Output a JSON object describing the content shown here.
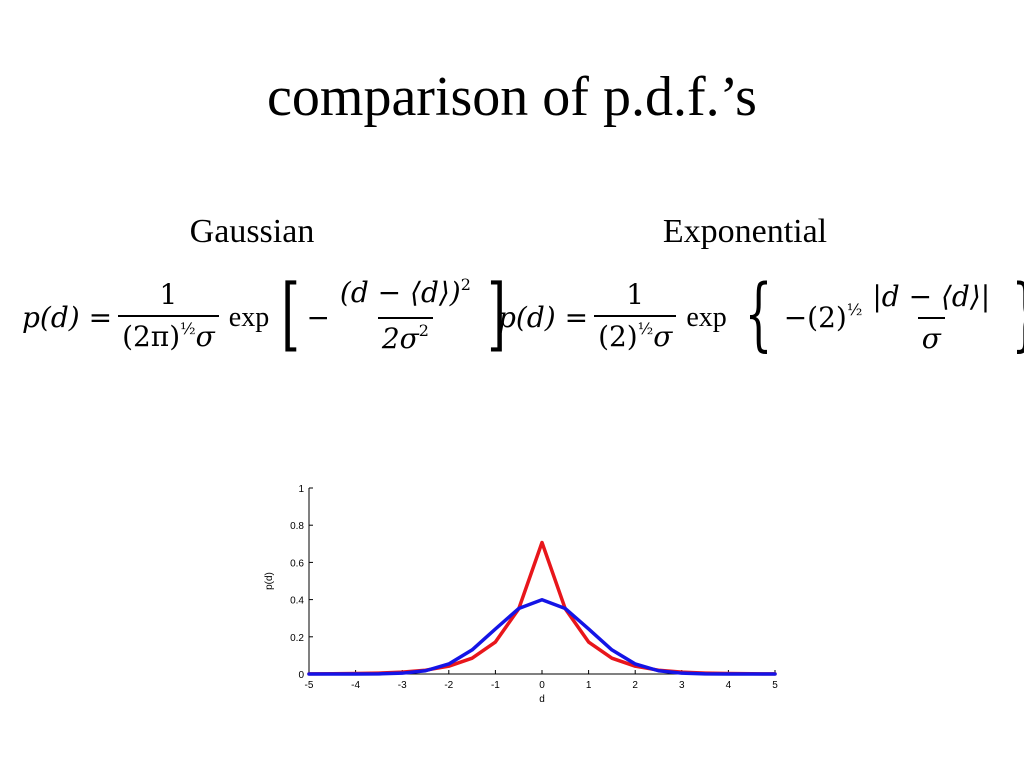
{
  "title": "comparison of p.d.f.’s",
  "gaussian": {
    "label": "Gaussian",
    "lhs": "p(d) =",
    "numerator": "1",
    "den_base": "(2π)",
    "den_exp": "½",
    "den_sigma": "σ",
    "exp_word": "exp",
    "open": "[",
    "minus": "−",
    "inner_num": "(d − ⟨d⟩)",
    "inner_num_exp": "2",
    "inner_den": "2σ",
    "inner_den_exp": "2",
    "close": "]"
  },
  "exponential": {
    "label": "Exponential",
    "lhs": "p(d) =",
    "numerator": "1",
    "den_base": "(2)",
    "den_exp": "½",
    "den_sigma": "σ",
    "exp_word": "exp",
    "open": "{",
    "minus": "−(2)",
    "minus_exp": "½",
    "inner_num": "|d − ⟨d⟩|",
    "inner_den": "σ",
    "close": "}"
  },
  "chart_data": {
    "type": "line",
    "xlabel": "d",
    "ylabel": "p(d)",
    "xlim": [
      -5,
      5
    ],
    "ylim": [
      0,
      1
    ],
    "xticks": [
      "-5",
      "-4",
      "-3",
      "-2",
      "-1",
      "0",
      "1",
      "2",
      "3",
      "4",
      "5"
    ],
    "yticks": [
      "0",
      "0.2",
      "0.4",
      "0.6",
      "0.8",
      "1"
    ],
    "grid": false,
    "series": [
      {
        "color": "#e8161b",
        "x": [
          -5,
          -4.5,
          -4,
          -3.5,
          -3,
          -2.5,
          -2,
          -1.5,
          -1,
          -0.5,
          0,
          0.5,
          1,
          1.5,
          2,
          2.5,
          3,
          3.5,
          4,
          4.5,
          5
        ],
        "values": [
          0.0006,
          0.0012,
          0.0025,
          0.005,
          0.01,
          0.0205,
          0.042,
          0.085,
          0.172,
          0.35,
          0.707,
          0.35,
          0.172,
          0.085,
          0.042,
          0.0205,
          0.01,
          0.005,
          0.0025,
          0.0012,
          0.0006
        ]
      },
      {
        "color": "#1414e6",
        "x": [
          -5,
          -4.5,
          -4,
          -3.5,
          -3,
          -2.5,
          -2,
          -1.5,
          -1,
          -0.5,
          0,
          0.5,
          1,
          1.5,
          2,
          2.5,
          3,
          3.5,
          4,
          4.5,
          5
        ],
        "values": [
          1.5e-06,
          1.6e-05,
          0.000134,
          0.00087,
          0.0044,
          0.0175,
          0.054,
          0.1295,
          0.242,
          0.352,
          0.399,
          0.352,
          0.242,
          0.1295,
          0.054,
          0.0175,
          0.0044,
          0.00087,
          0.000134,
          1.6e-05,
          1.5e-06
        ]
      }
    ]
  }
}
